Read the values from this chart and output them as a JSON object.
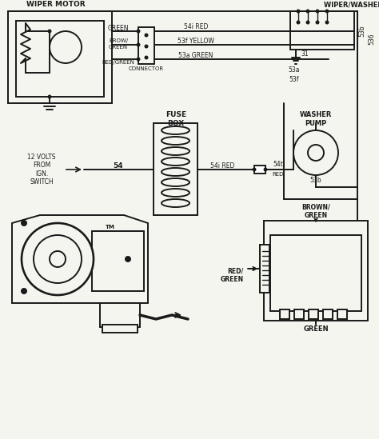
{
  "bg_color": "#f5f5f0",
  "line_color": "#1a1a1a",
  "components": {
    "wiper_motor_label": "WIPER MOTOR",
    "wiper_washer_sw_label": "WIPER/WASHER SW.",
    "fuse_box_label": "FUSE\nBOX",
    "washer_pump_label": "WASHER\nPUMP",
    "connector_label": "CONNECTOR",
    "ignition_label": "12 VOLTS\nFROM\nIGN.\nSWITCH",
    "brown_green_label": "BROWN/\nGREEN",
    "red_green_label": "RED/\nGREEN",
    "green_label": "GREEN"
  }
}
